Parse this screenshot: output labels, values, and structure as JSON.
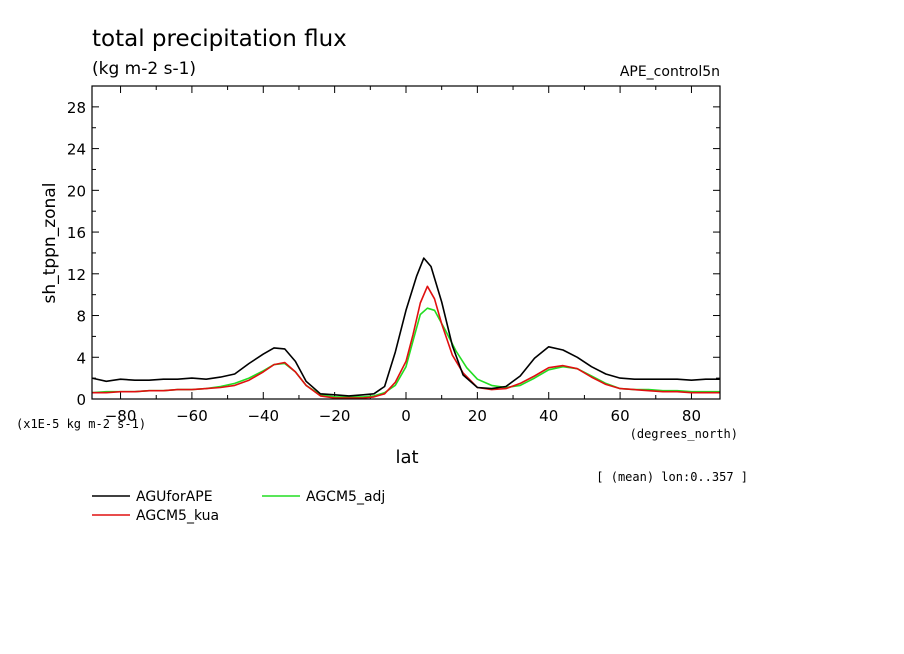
{
  "chart_data": {
    "type": "line",
    "title": "total precipitation flux",
    "units": "(kg m-2 s-1)",
    "experiment": "APE_control5n",
    "ylabel": "sh_tppn_zonal",
    "yscale_label": "(x1E-5 kg m-2 s-1)",
    "xlabel": "lat",
    "xunits": "(degrees_north)",
    "note": "[ (mean) lon:0..357 ]",
    "xlim": [
      -88,
      88
    ],
    "ylim": [
      0,
      30
    ],
    "xticks": [
      -80,
      -60,
      -40,
      -20,
      0,
      20,
      40,
      60,
      80
    ],
    "yticks": [
      0,
      4,
      8,
      12,
      16,
      20,
      24,
      28
    ],
    "series": [
      {
        "name": "AGUforAPE",
        "color": "#000000",
        "x": [
          -88,
          -84,
          -80,
          -76,
          -72,
          -68,
          -64,
          -60,
          -56,
          -52,
          -48,
          -44,
          -40,
          -37,
          -34,
          -31,
          -28,
          -24,
          -20,
          -16,
          -12,
          -9,
          -6,
          -3,
          0,
          3,
          5,
          7,
          10,
          13,
          16,
          20,
          24,
          28,
          32,
          36,
          40,
          44,
          48,
          52,
          56,
          60,
          64,
          68,
          72,
          76,
          80,
          84,
          88
        ],
        "values": [
          2.0,
          1.7,
          1.9,
          1.8,
          1.8,
          1.9,
          1.9,
          2.0,
          1.9,
          2.1,
          2.4,
          3.4,
          4.3,
          4.9,
          4.8,
          3.6,
          1.7,
          0.5,
          0.4,
          0.3,
          0.4,
          0.5,
          1.2,
          4.5,
          8.5,
          11.8,
          13.5,
          12.7,
          9.3,
          5.1,
          2.3,
          1.1,
          1.0,
          1.2,
          2.2,
          3.9,
          5.0,
          4.7,
          4.0,
          3.1,
          2.4,
          2.0,
          1.9,
          1.9,
          1.9,
          1.9,
          1.8,
          1.9,
          1.9
        ]
      },
      {
        "name": "AGCM5_kua",
        "color": "#e01010",
        "x": [
          -88,
          -84,
          -80,
          -76,
          -72,
          -68,
          -64,
          -60,
          -56,
          -52,
          -48,
          -44,
          -40,
          -37,
          -34,
          -31,
          -28,
          -24,
          -20,
          -16,
          -12,
          -9,
          -6,
          -3,
          0,
          2,
          4,
          6,
          8,
          10,
          13,
          16,
          20,
          24,
          28,
          32,
          36,
          40,
          44,
          48,
          52,
          56,
          60,
          64,
          68,
          72,
          76,
          80,
          84,
          88
        ],
        "values": [
          0.6,
          0.6,
          0.7,
          0.7,
          0.8,
          0.8,
          0.9,
          0.9,
          1.0,
          1.1,
          1.3,
          1.8,
          2.6,
          3.3,
          3.5,
          2.6,
          1.3,
          0.3,
          0.1,
          0.1,
          0.1,
          0.2,
          0.5,
          1.6,
          3.6,
          6.2,
          9.2,
          10.8,
          9.6,
          7.2,
          4.2,
          2.5,
          1.1,
          0.9,
          1.0,
          1.5,
          2.2,
          3.0,
          3.2,
          2.9,
          2.1,
          1.4,
          1.0,
          0.9,
          0.8,
          0.7,
          0.7,
          0.6,
          0.6,
          0.6
        ]
      },
      {
        "name": "AGCM5_adj",
        "color": "#22dd22",
        "x": [
          -88,
          -84,
          -80,
          -76,
          -72,
          -68,
          -64,
          -60,
          -56,
          -52,
          -48,
          -44,
          -40,
          -37,
          -34,
          -31,
          -28,
          -24,
          -20,
          -16,
          -12,
          -9,
          -6,
          -3,
          0,
          2,
          4,
          6,
          8,
          11,
          14,
          17,
          20,
          24,
          28,
          32,
          36,
          40,
          44,
          48,
          52,
          56,
          60,
          64,
          68,
          72,
          76,
          80,
          84,
          88
        ],
        "values": [
          0.6,
          0.7,
          0.7,
          0.7,
          0.8,
          0.8,
          0.9,
          0.9,
          1.0,
          1.2,
          1.5,
          2.0,
          2.7,
          3.3,
          3.4,
          2.6,
          1.3,
          0.4,
          0.2,
          0.2,
          0.2,
          0.3,
          0.6,
          1.3,
          3.1,
          5.6,
          8.1,
          8.7,
          8.5,
          6.6,
          4.6,
          3.0,
          1.9,
          1.3,
          1.1,
          1.3,
          2.0,
          2.8,
          3.1,
          2.9,
          2.2,
          1.5,
          1.0,
          0.9,
          0.9,
          0.8,
          0.8,
          0.7,
          0.7,
          0.7
        ]
      }
    ]
  }
}
